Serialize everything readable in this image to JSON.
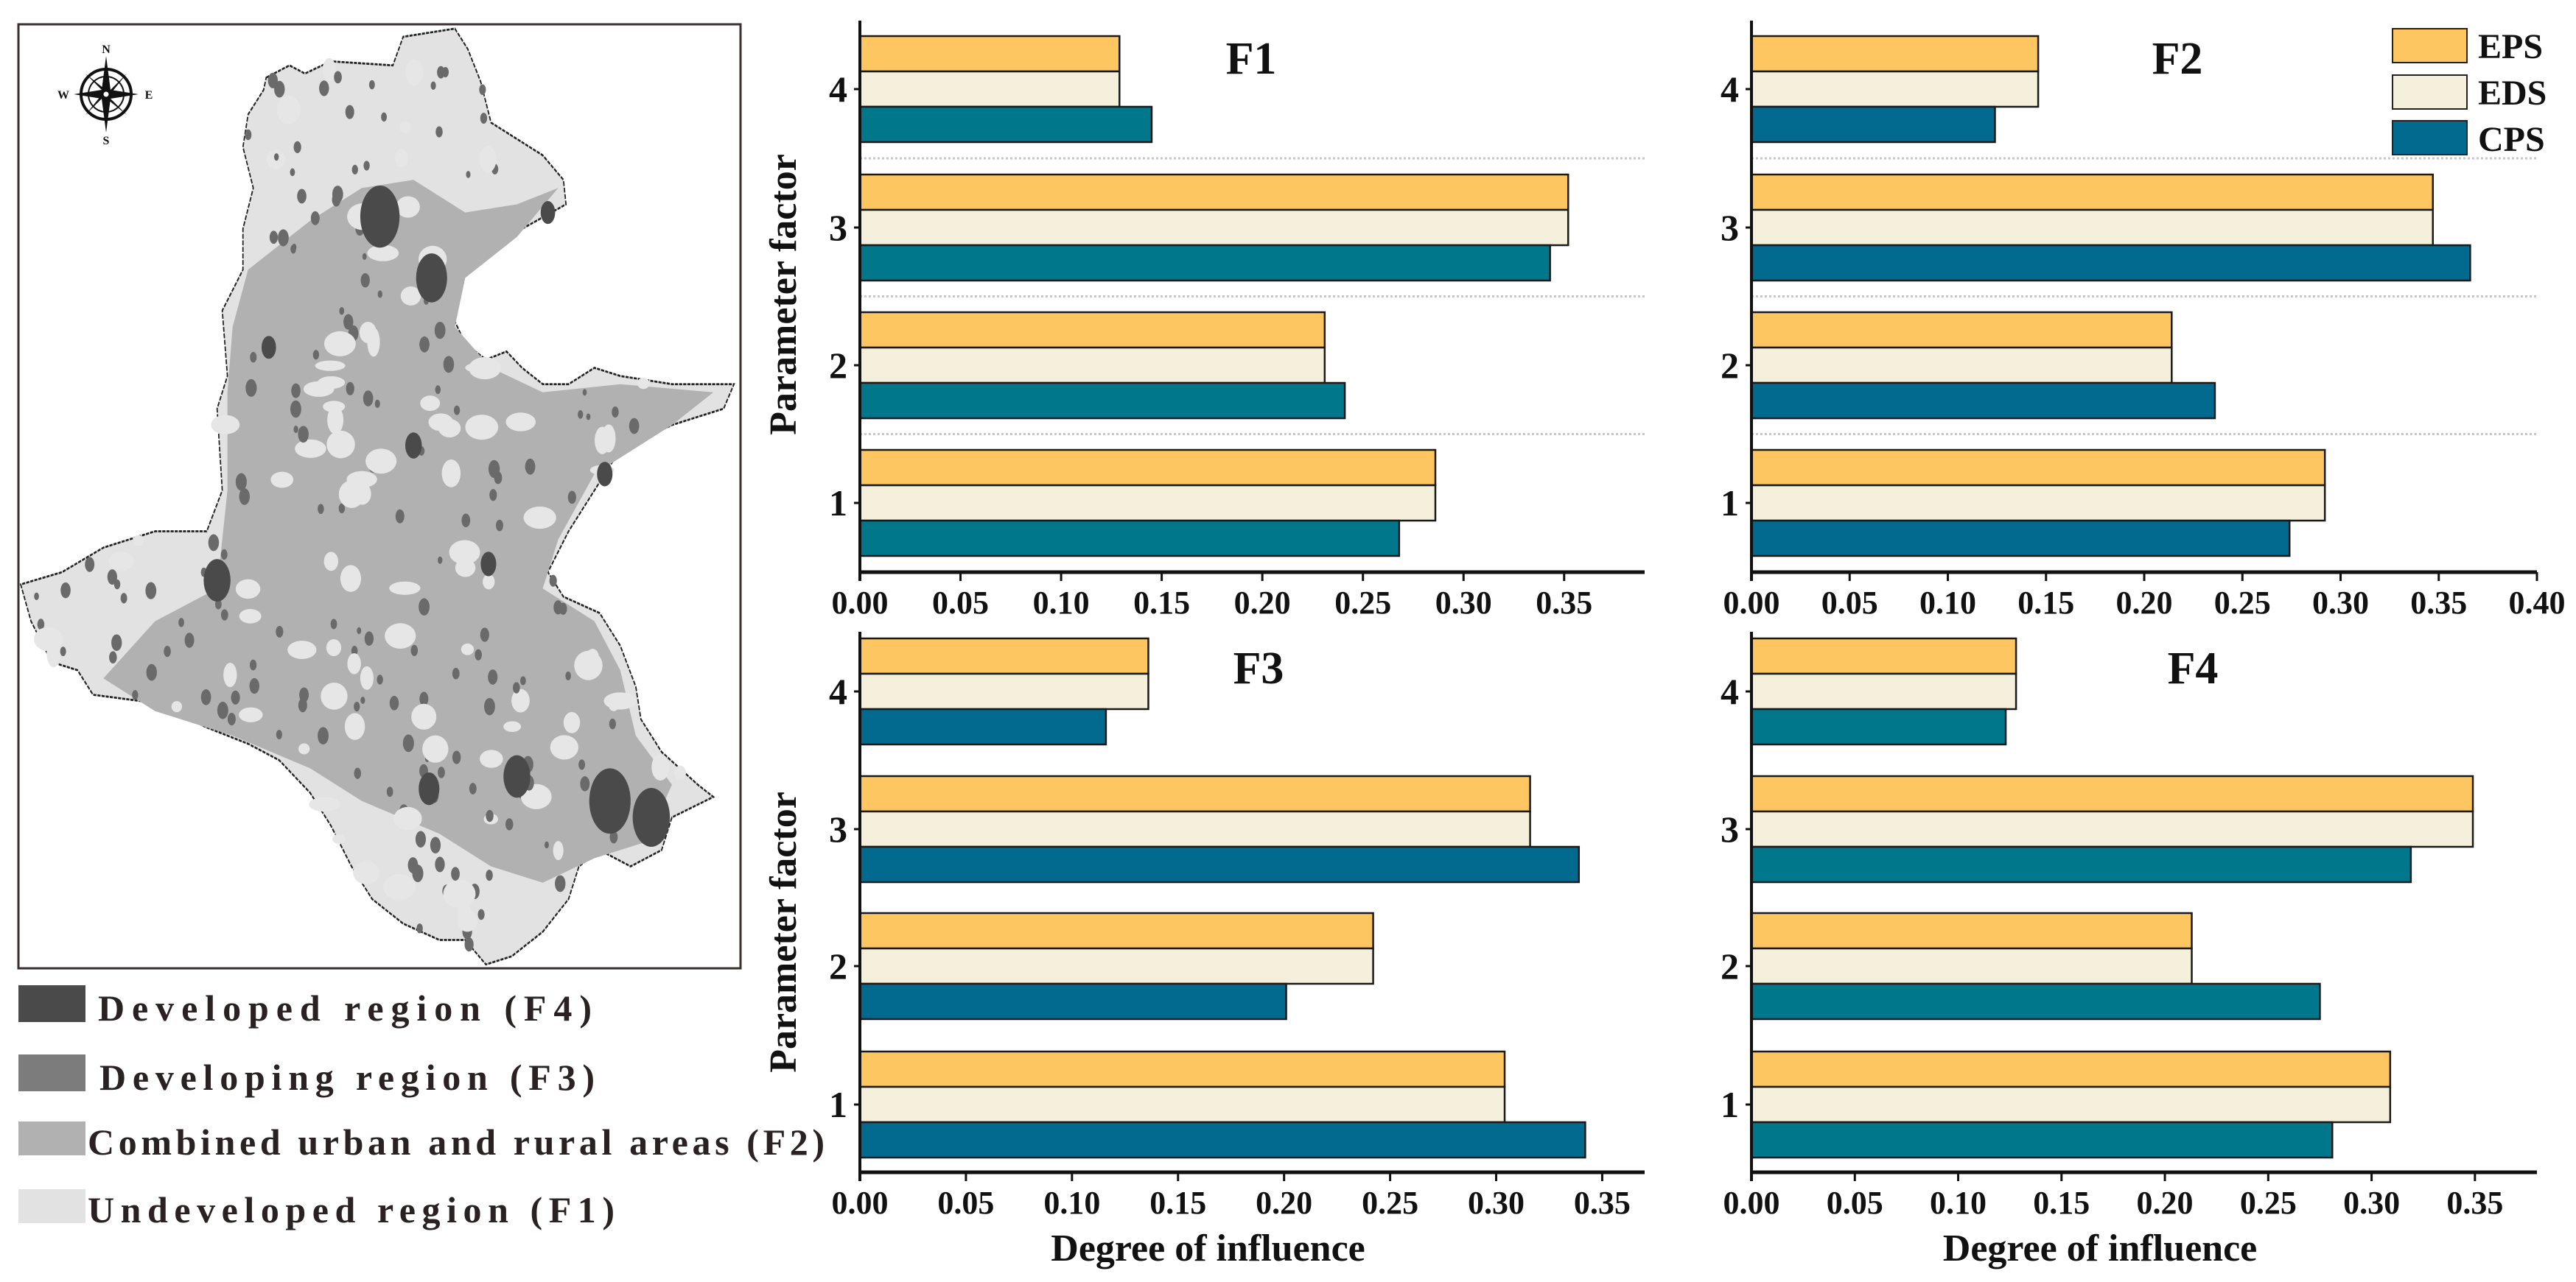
{
  "map": {
    "compass": {
      "n": "N",
      "e": "E",
      "s": "S",
      "w": "W"
    },
    "legend": [
      {
        "label": "Developed region (F4)",
        "color": "#4a4a4a"
      },
      {
        "label": "Developing region (F3)",
        "color": "#7c7c7c"
      },
      {
        "label": "Combined urban and rural areas (F2)",
        "color": "#b1b1b1"
      },
      {
        "label": "Undeveloped region (F1)",
        "color": "#e2e2e2"
      }
    ]
  },
  "legend": [
    {
      "name": "EPS",
      "color": "#FEC660"
    },
    {
      "name": "EDS",
      "color": "#F5F0DC"
    },
    {
      "name": "CPS",
      "color": "#016A8E"
    }
  ],
  "chart_data": [
    {
      "type": "bar",
      "orientation": "horizontal",
      "title": "F1",
      "categories": [
        "1",
        "2",
        "3",
        "4"
      ],
      "series": [
        {
          "name": "EPS",
          "color": "#FEC660",
          "values": [
            0.286,
            0.231,
            0.352,
            0.129
          ]
        },
        {
          "name": "EDS",
          "color": "#F5F0DC",
          "values": [
            0.286,
            0.231,
            0.352,
            0.129
          ]
        },
        {
          "name": "CPS",
          "color": "#00778A",
          "values": [
            0.268,
            0.241,
            0.343,
            0.145
          ]
        }
      ],
      "xlim": [
        0,
        0.39
      ],
      "xticks": [
        "0.00",
        "0.05",
        "0.10",
        "0.15",
        "0.20",
        "0.25",
        "0.30",
        "0.35"
      ],
      "xlabel": "",
      "ylabel": "Parameter factor",
      "grid": true
    },
    {
      "type": "bar",
      "orientation": "horizontal",
      "title": "F2",
      "categories": [
        "1",
        "2",
        "3",
        "4"
      ],
      "series": [
        {
          "name": "EPS",
          "color": "#FEC660",
          "values": [
            0.292,
            0.214,
            0.347,
            0.146
          ]
        },
        {
          "name": "EDS",
          "color": "#F5F0DC",
          "values": [
            0.292,
            0.214,
            0.347,
            0.146
          ]
        },
        {
          "name": "CPS",
          "color": "#016A8E",
          "values": [
            0.274,
            0.236,
            0.366,
            0.124
          ]
        }
      ],
      "xlim": [
        0,
        0.4
      ],
      "xticks": [
        "0.00",
        "0.05",
        "0.10",
        "0.15",
        "0.20",
        "0.25",
        "0.30",
        "0.35",
        "0.40"
      ],
      "xlabel": "",
      "ylabel": "",
      "grid": true,
      "legend": "top-right"
    },
    {
      "type": "bar",
      "orientation": "horizontal",
      "title": "F3",
      "categories": [
        "1",
        "2",
        "3",
        "4"
      ],
      "series": [
        {
          "name": "EPS",
          "color": "#FEC660",
          "values": [
            0.304,
            0.242,
            0.316,
            0.136
          ]
        },
        {
          "name": "EDS",
          "color": "#F5F0DC",
          "values": [
            0.304,
            0.242,
            0.316,
            0.136
          ]
        },
        {
          "name": "CPS",
          "color": "#016A8E",
          "values": [
            0.342,
            0.201,
            0.339,
            0.116
          ]
        }
      ],
      "xlim": [
        0,
        0.37
      ],
      "xticks": [
        "0.00",
        "0.05",
        "0.10",
        "0.15",
        "0.20",
        "0.25",
        "0.30",
        "0.35"
      ],
      "xlabel": "Degree of influence",
      "ylabel": "Parameter factor",
      "grid": false
    },
    {
      "type": "bar",
      "orientation": "horizontal",
      "title": "F4",
      "categories": [
        "1",
        "2",
        "3",
        "4"
      ],
      "series": [
        {
          "name": "EPS",
          "color": "#FEC660",
          "values": [
            0.309,
            0.213,
            0.349,
            0.128
          ]
        },
        {
          "name": "EDS",
          "color": "#F5F0DC",
          "values": [
            0.309,
            0.213,
            0.349,
            0.128
          ]
        },
        {
          "name": "CPS",
          "color": "#00778A",
          "values": [
            0.281,
            0.275,
            0.319,
            0.123
          ]
        }
      ],
      "xlim": [
        0,
        0.38
      ],
      "xticks": [
        "0.00",
        "0.05",
        "0.10",
        "0.15",
        "0.20",
        "0.25",
        "0.30",
        "0.35"
      ],
      "xlabel": "Degree of influence",
      "ylabel": "",
      "grid": false
    }
  ]
}
